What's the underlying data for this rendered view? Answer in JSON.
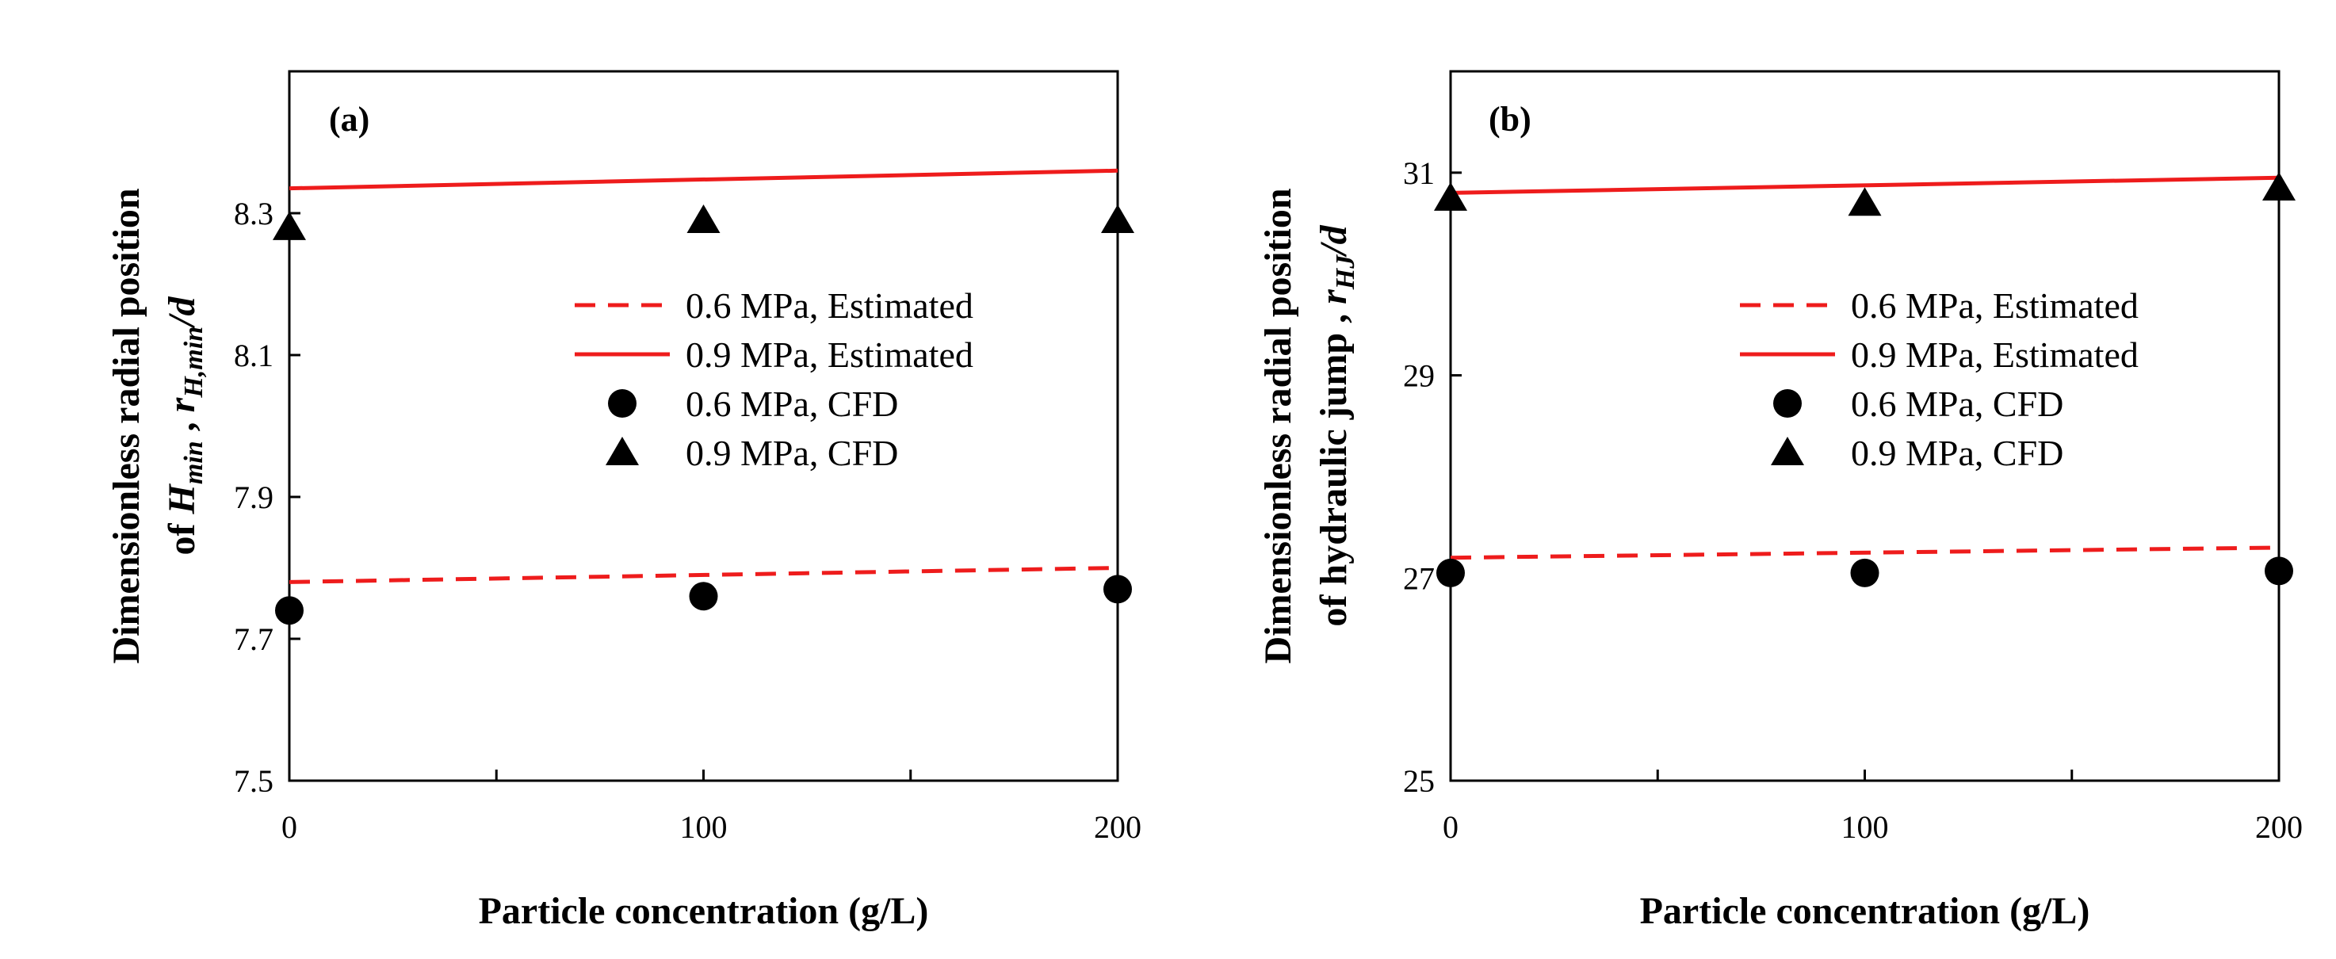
{
  "colors": {
    "estimated": "#ee1c1c",
    "cfd": "#000000",
    "axis": "#000000"
  },
  "chart_data": [
    {
      "type": "scatter",
      "panel_label": "(a)",
      "xlabel": "Particle concentration (g/L)",
      "ylabel_line1": "Dimensionless radial position",
      "ylabel_line2": {
        "prefix": "of ",
        "h": "H",
        "h_sub": "min",
        "mid": " , ",
        "r": "r",
        "r_sub": "H,min",
        "suffix": "/d"
      },
      "xlim": [
        0,
        200
      ],
      "ylim": [
        7.5,
        8.5
      ],
      "x_ticks": [
        0,
        100,
        200
      ],
      "x_tick_labels": [
        "0",
        "100",
        "200"
      ],
      "x_minor_ticks": [
        50,
        150
      ],
      "y_ticks": [
        7.5,
        7.7,
        7.9,
        8.1,
        8.3
      ],
      "y_tick_labels": [
        "7.5",
        "7.7",
        "7.9",
        "8.1",
        "8.3"
      ],
      "legend_position": "middle-right",
      "series": [
        {
          "name": "0.6 MPa, Estimated",
          "style": "dashed-line",
          "x": [
            0,
            200
          ],
          "y": [
            7.78,
            7.8
          ]
        },
        {
          "name": "0.9 MPa, Estimated",
          "style": "solid-line",
          "x": [
            0,
            200
          ],
          "y": [
            8.335,
            8.36
          ]
        },
        {
          "name": "0.6 MPa, CFD",
          "style": "circle",
          "x": [
            0,
            100,
            200
          ],
          "y": [
            7.74,
            7.76,
            7.77
          ]
        },
        {
          "name": "0.9 MPa, CFD",
          "style": "triangle",
          "x": [
            0,
            100,
            200
          ],
          "y": [
            8.28,
            8.29,
            8.29
          ]
        }
      ]
    },
    {
      "type": "scatter",
      "panel_label": "(b)",
      "xlabel": "Particle concentration (g/L)",
      "ylabel_line1": "Dimensionless radial position",
      "ylabel_line2": {
        "prefix": "of hydraulic jump , ",
        "r": "r",
        "r_sub": "HJ",
        "suffix": "/d"
      },
      "xlim": [
        0,
        200
      ],
      "ylim": [
        25,
        32
      ],
      "x_ticks": [
        0,
        100,
        200
      ],
      "x_tick_labels": [
        "0",
        "100",
        "200"
      ],
      "x_minor_ticks": [
        50,
        150
      ],
      "y_ticks": [
        25,
        27,
        29,
        31
      ],
      "y_tick_labels": [
        "25",
        "27",
        "29",
        "31"
      ],
      "legend_position": "middle-right",
      "series": [
        {
          "name": "0.6 MPa, Estimated",
          "style": "dashed-line",
          "x": [
            0,
            200
          ],
          "y": [
            27.2,
            27.3
          ]
        },
        {
          "name": "0.9 MPa, Estimated",
          "style": "solid-line",
          "x": [
            0,
            200
          ],
          "y": [
            30.8,
            30.95
          ]
        },
        {
          "name": "0.6 MPa, CFD",
          "style": "circle",
          "x": [
            0,
            100,
            200
          ],
          "y": [
            27.05,
            27.05,
            27.07
          ]
        },
        {
          "name": "0.9 MPa, CFD",
          "style": "triangle",
          "x": [
            0,
            100,
            200
          ],
          "y": [
            30.75,
            30.7,
            30.85
          ]
        }
      ]
    }
  ]
}
